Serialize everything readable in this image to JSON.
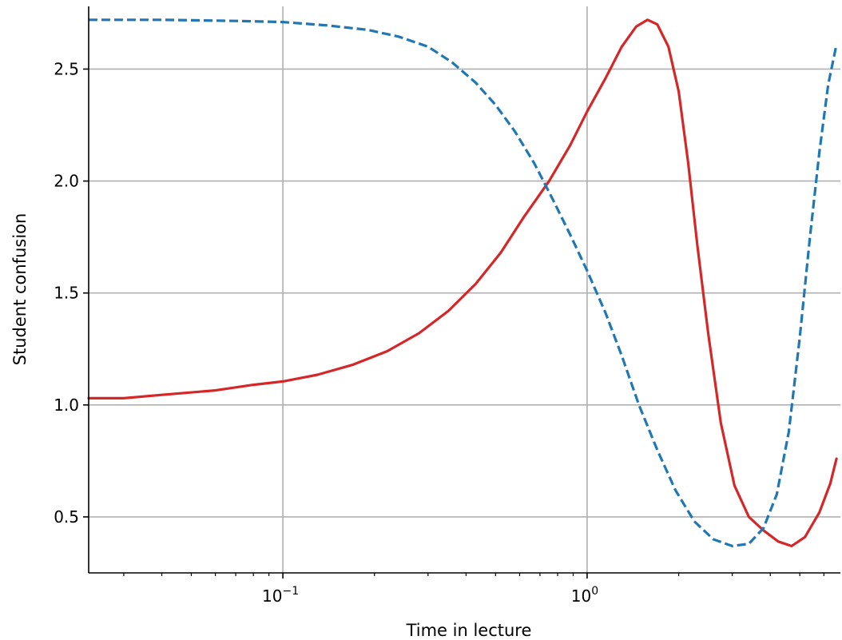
{
  "chart_data": {
    "type": "line",
    "title": "",
    "xlabel": "Time in lecture",
    "ylabel": "Student confusion",
    "xscale": "log",
    "xlim": [
      0.023,
      6.8
    ],
    "ylim": [
      0.25,
      2.78
    ],
    "grid": true,
    "legend": "none",
    "x_ticks": [
      {
        "value": 0.1,
        "base": "10",
        "exp": "−1"
      },
      {
        "value": 1,
        "base": "10",
        "exp": "0"
      }
    ],
    "y_ticks": [
      {
        "value": 0.5,
        "label": "0.5"
      },
      {
        "value": 1.0,
        "label": "1.0"
      },
      {
        "value": 1.5,
        "label": "1.5"
      },
      {
        "value": 2.0,
        "label": "2.0"
      },
      {
        "value": 2.5,
        "label": "2.5"
      }
    ],
    "series": [
      {
        "color": "#d62728",
        "style": "solid",
        "points": [
          [
            0.023,
            1.03
          ],
          [
            0.03,
            1.03
          ],
          [
            0.04,
            1.045
          ],
          [
            0.06,
            1.065
          ],
          [
            0.08,
            1.09
          ],
          [
            0.1,
            1.105
          ],
          [
            0.13,
            1.135
          ],
          [
            0.17,
            1.18
          ],
          [
            0.22,
            1.24
          ],
          [
            0.28,
            1.32
          ],
          [
            0.35,
            1.42
          ],
          [
            0.43,
            1.54
          ],
          [
            0.52,
            1.68
          ],
          [
            0.62,
            1.84
          ],
          [
            0.75,
            2.0
          ],
          [
            0.88,
            2.16
          ],
          [
            1.0,
            2.31
          ],
          [
            1.15,
            2.46
          ],
          [
            1.3,
            2.6
          ],
          [
            1.45,
            2.69
          ],
          [
            1.58,
            2.72
          ],
          [
            1.7,
            2.7
          ],
          [
            1.85,
            2.6
          ],
          [
            2.0,
            2.4
          ],
          [
            2.15,
            2.08
          ],
          [
            2.3,
            1.72
          ],
          [
            2.5,
            1.32
          ],
          [
            2.75,
            0.92
          ],
          [
            3.05,
            0.64
          ],
          [
            3.4,
            0.5
          ],
          [
            3.8,
            0.44
          ],
          [
            4.25,
            0.39
          ],
          [
            4.7,
            0.37
          ],
          [
            5.2,
            0.41
          ],
          [
            5.8,
            0.52
          ],
          [
            6.3,
            0.65
          ],
          [
            6.6,
            0.76
          ]
        ]
      },
      {
        "color": "#1f77b4",
        "style": "dashed",
        "points": [
          [
            0.023,
            2.72
          ],
          [
            0.04,
            2.72
          ],
          [
            0.07,
            2.715
          ],
          [
            0.1,
            2.71
          ],
          [
            0.14,
            2.695
          ],
          [
            0.19,
            2.675
          ],
          [
            0.24,
            2.645
          ],
          [
            0.3,
            2.6
          ],
          [
            0.36,
            2.53
          ],
          [
            0.43,
            2.44
          ],
          [
            0.5,
            2.34
          ],
          [
            0.58,
            2.22
          ],
          [
            0.67,
            2.08
          ],
          [
            0.77,
            1.92
          ],
          [
            0.88,
            1.76
          ],
          [
            1.0,
            1.6
          ],
          [
            1.15,
            1.41
          ],
          [
            1.3,
            1.22
          ],
          [
            1.48,
            1.0
          ],
          [
            1.7,
            0.8
          ],
          [
            1.95,
            0.62
          ],
          [
            2.25,
            0.48
          ],
          [
            2.6,
            0.4
          ],
          [
            3.0,
            0.37
          ],
          [
            3.4,
            0.38
          ],
          [
            3.8,
            0.45
          ],
          [
            4.2,
            0.6
          ],
          [
            4.6,
            0.88
          ],
          [
            5.0,
            1.3
          ],
          [
            5.4,
            1.75
          ],
          [
            5.8,
            2.13
          ],
          [
            6.2,
            2.43
          ],
          [
            6.6,
            2.61
          ]
        ]
      }
    ]
  }
}
